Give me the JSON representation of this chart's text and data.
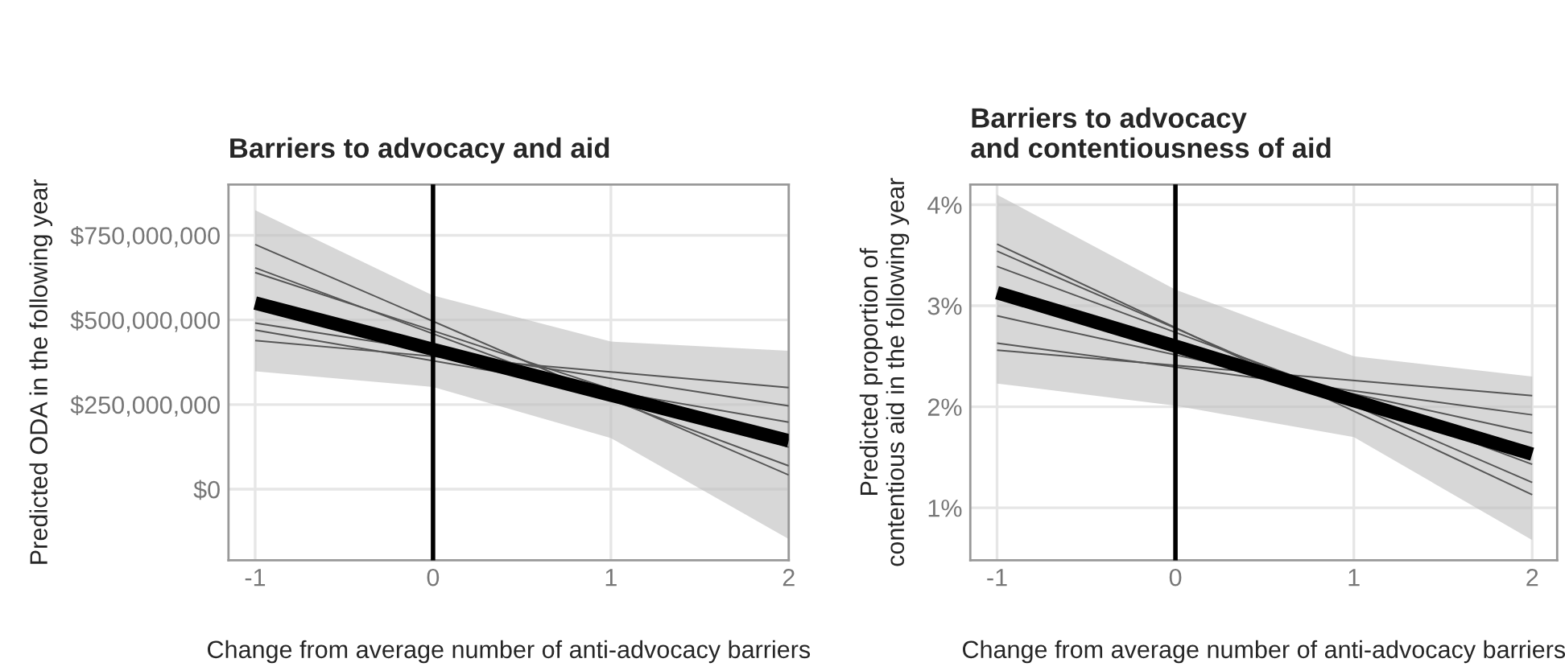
{
  "chart_data": [
    {
      "type": "line",
      "title": "Barriers to advocacy and aid",
      "xlabel": "Change from average number of anti-advocacy barriers",
      "ylabel": "Predicted ODA in the following year",
      "xlim": [
        -1.15,
        2.0
      ],
      "xticks": [
        -1,
        0,
        1,
        2
      ],
      "ylim": [
        -210000000,
        900000000
      ],
      "yticks": [
        {
          "value": 0,
          "label": "$0"
        },
        {
          "value": 250000000,
          "label": "$250,000,000"
        },
        {
          "value": 500000000,
          "label": "$500,000,000"
        },
        {
          "value": 750000000,
          "label": "$750,000,000"
        }
      ],
      "grid": true,
      "legend": false,
      "ref_lines": [
        {
          "axis": "x",
          "value": 0,
          "color": "#000000"
        }
      ],
      "series": [
        {
          "color": "#555555",
          "x": [
            -1,
            2
          ],
          "values": [
            723000000,
            42000000
          ]
        },
        {
          "color": "#555555",
          "x": [
            -1,
            2
          ],
          "values": [
            654000000,
            69000000
          ]
        },
        {
          "color": "#555555",
          "x": [
            -1,
            2
          ],
          "values": [
            640000000,
            124000000
          ]
        },
        {
          "color": "#555555",
          "x": [
            -1,
            2
          ],
          "values": [
            491000000,
            246000000
          ]
        },
        {
          "color": "#555555",
          "x": [
            -1,
            2
          ],
          "values": [
            470000000,
            198000000
          ]
        },
        {
          "color": "#555555",
          "x": [
            -1,
            2
          ],
          "values": [
            439000000,
            300000000
          ]
        },
        {
          "color": "#000000",
          "x": [
            -1,
            0,
            1,
            2
          ],
          "values": [
            550000000,
            413000000,
            278000000,
            143000000
          ],
          "lower": [
            348000000,
            302000000,
            151000000,
            -147000000
          ],
          "upper": [
            824000000,
            572000000,
            436000000,
            409000000
          ]
        }
      ]
    },
    {
      "type": "line",
      "title": "Barriers to advocacy\nand contentiousness of aid",
      "xlabel": "Change from average number of anti-advocacy barriers",
      "ylabel": "Predicted proportion of\ncontentious aid in the following year",
      "xlim": [
        -1.15,
        2.14
      ],
      "xticks": [
        -1,
        0,
        1,
        2
      ],
      "ylim": [
        0.48,
        4.2
      ],
      "yticks": [
        {
          "value": 1,
          "label": "1%"
        },
        {
          "value": 2,
          "label": "2%"
        },
        {
          "value": 3,
          "label": "3%"
        },
        {
          "value": 4,
          "label": "4%"
        }
      ],
      "grid": true,
      "legend": false,
      "ref_lines": [
        {
          "axis": "x",
          "value": 0,
          "color": "#000000"
        }
      ],
      "series": [
        {
          "color": "#555555",
          "x": [
            -1,
            2
          ],
          "values": [
            3.61,
            1.13
          ]
        },
        {
          "color": "#555555",
          "x": [
            -1,
            2
          ],
          "values": [
            3.54,
            1.25
          ]
        },
        {
          "color": "#555555",
          "x": [
            -1,
            2
          ],
          "values": [
            3.39,
            1.43
          ]
        },
        {
          "color": "#555555",
          "x": [
            -1,
            2
          ],
          "values": [
            2.9,
            1.74
          ]
        },
        {
          "color": "#555555",
          "x": [
            -1,
            2
          ],
          "values": [
            2.63,
            1.92
          ]
        },
        {
          "color": "#555555",
          "x": [
            -1,
            2
          ],
          "values": [
            2.56,
            2.11
          ]
        },
        {
          "color": "#000000",
          "x": [
            -1,
            0,
            1,
            2
          ],
          "values": [
            3.13,
            2.6,
            2.06,
            1.53
          ],
          "lower": [
            2.23,
            2.01,
            1.7,
            0.68
          ],
          "upper": [
            4.1,
            3.16,
            2.5,
            2.3
          ]
        }
      ]
    }
  ]
}
